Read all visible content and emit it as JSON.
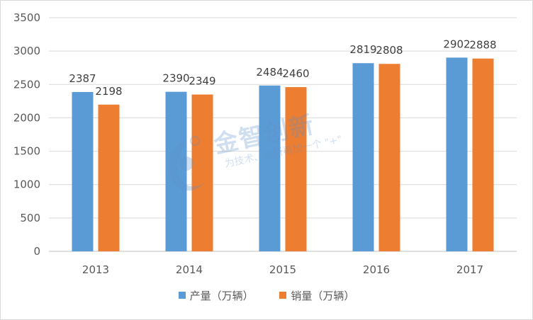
{
  "chart_data": {
    "type": "bar",
    "categories": [
      "2013",
      "2014",
      "2015",
      "2016",
      "2017"
    ],
    "series": [
      {
        "name": "产量（万辆）",
        "values": [
          2387,
          2390,
          2484,
          2819,
          2902
        ],
        "color": "#5b9bd5"
      },
      {
        "name": "销量（万辆）",
        "values": [
          2198,
          2349,
          2460,
          2808,
          2888
        ],
        "color": "#ed7d31"
      }
    ],
    "y_ticks": [
      "0",
      "500",
      "1000",
      "1500",
      "2000",
      "2500",
      "3000",
      "3500"
    ],
    "ylim": [
      0,
      3500
    ],
    "grid": true,
    "legend_position": "bottom"
  },
  "watermark": {
    "name": "金智创新",
    "slogan": "为技术、创新再加一个 \"+\""
  }
}
